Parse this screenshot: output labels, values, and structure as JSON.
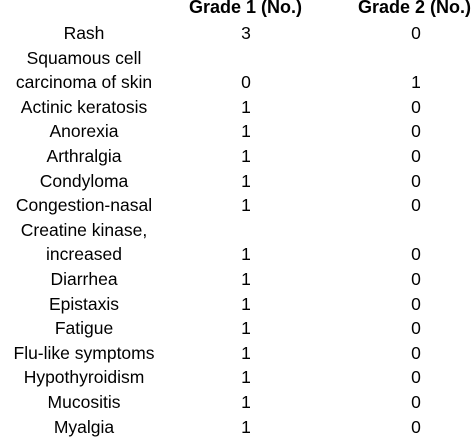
{
  "table": {
    "headers": [
      "",
      "Grade 1 (No.)",
      "Grade 2 (No.)"
    ],
    "rows": [
      {
        "label": [
          "Rash"
        ],
        "grade1": "3",
        "grade2": "0"
      },
      {
        "label": [
          "Squamous cell",
          "carcinoma of skin"
        ],
        "grade1": "0",
        "grade2": "1"
      },
      {
        "label": [
          "Actinic keratosis"
        ],
        "grade1": "1",
        "grade2": "0"
      },
      {
        "label": [
          "Anorexia"
        ],
        "grade1": "1",
        "grade2": "0"
      },
      {
        "label": [
          "Arthralgia"
        ],
        "grade1": "1",
        "grade2": "0"
      },
      {
        "label": [
          "Condyloma"
        ],
        "grade1": "1",
        "grade2": "0"
      },
      {
        "label": [
          "Congestion-nasal"
        ],
        "grade1": "1",
        "grade2": "0"
      },
      {
        "label": [
          "Creatine kinase,",
          "increased"
        ],
        "grade1": "1",
        "grade2": "0"
      },
      {
        "label": [
          "Diarrhea"
        ],
        "grade1": "1",
        "grade2": "0"
      },
      {
        "label": [
          "Epistaxis"
        ],
        "grade1": "1",
        "grade2": "0"
      },
      {
        "label": [
          "Fatigue"
        ],
        "grade1": "1",
        "grade2": "0"
      },
      {
        "label": [
          "Flu-like symptoms"
        ],
        "grade1": "1",
        "grade2": "0"
      },
      {
        "label": [
          "Hypothyroidism"
        ],
        "grade1": "1",
        "grade2": "0"
      },
      {
        "label": [
          "Mucositis"
        ],
        "grade1": "1",
        "grade2": "0"
      },
      {
        "label": [
          "Myalgia"
        ],
        "grade1": "1",
        "grade2": "0"
      }
    ]
  }
}
